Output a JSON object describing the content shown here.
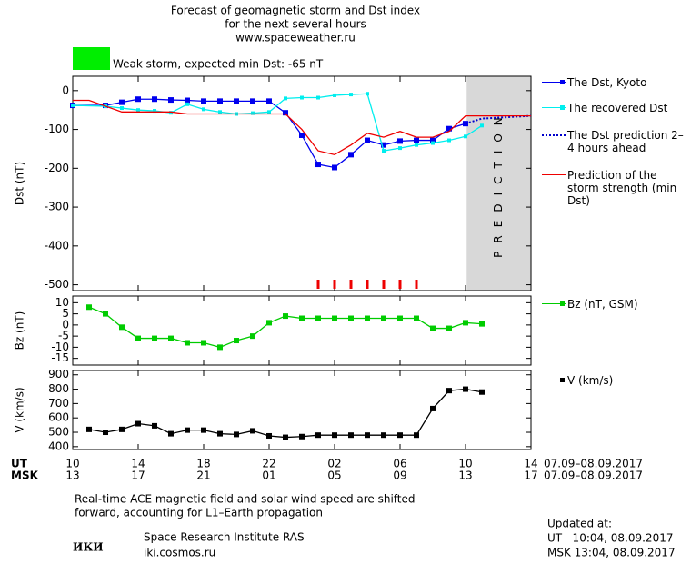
{
  "title_lines": [
    "Forecast of geomagnetic storm and Dst index",
    "for the next several hours",
    "www.spaceweather.ru"
  ],
  "storm_label": "Weak storm, expected min Dst: -65 nT",
  "storm_color": "#00ee00",
  "chart_data": [
    {
      "type": "line",
      "y_label": "Dst (nT)",
      "ylim": [
        -515,
        37
      ],
      "yticks": [
        0,
        -100,
        -200,
        -300,
        -400,
        -500
      ],
      "xlim": [
        0,
        28
      ],
      "prediction_region": [
        24.07,
        28
      ],
      "prediction_label": "PREDICTION",
      "storm_hours": [
        15,
        16,
        17,
        18,
        19,
        20,
        21
      ],
      "storm_hours_color": "#ee0000",
      "series": [
        {
          "name": "The Dst, Kyoto",
          "color": "#0000ee",
          "marker": "square",
          "x": [
            0,
            2,
            3,
            4,
            5,
            6,
            7,
            8,
            9,
            10,
            11,
            12,
            13,
            14,
            15,
            16,
            17,
            18,
            19,
            20,
            21,
            22,
            23,
            24
          ],
          "values": [
            -38,
            -38,
            -30,
            -22,
            -22,
            -24,
            -25,
            -27,
            -27,
            -27,
            -27,
            -27,
            -57,
            -115,
            -190,
            -198,
            -165,
            -128,
            -140,
            -130,
            -128,
            -128,
            -98,
            -85
          ]
        },
        {
          "name": "The recovered Dst",
          "color": "#00eeee",
          "marker": "small-square",
          "x": [
            0,
            2,
            3,
            4,
            5,
            6,
            7,
            8,
            9,
            10,
            11,
            12,
            13,
            14,
            15,
            16,
            17,
            18,
            19,
            20,
            21,
            22,
            23,
            24,
            25
          ],
          "values": [
            -38,
            -40,
            -45,
            -50,
            -52,
            -57,
            -35,
            -48,
            -55,
            -60,
            -58,
            -55,
            -20,
            -18,
            -18,
            -12,
            -10,
            -8,
            -155,
            -148,
            -140,
            -135,
            -128,
            -118,
            -90
          ]
        },
        {
          "name": "The Dst prediction 2–4 hours ahead",
          "color": "#0000cc",
          "dash": true,
          "x": [
            24,
            25,
            28
          ],
          "values": [
            -85,
            -72,
            -65
          ]
        },
        {
          "name": "Prediction of the storm strength (min Dst)",
          "color": "#ee0000",
          "x": [
            0,
            1,
            3,
            6,
            7,
            13,
            14,
            15,
            16,
            17,
            18,
            19,
            20,
            21,
            22,
            23,
            24,
            28
          ],
          "values": [
            -25,
            -25,
            -55,
            -55,
            -60,
            -60,
            -100,
            -155,
            -165,
            -140,
            -110,
            -120,
            -105,
            -120,
            -120,
            -105,
            -65,
            -65
          ]
        }
      ]
    },
    {
      "type": "line",
      "y_label": "Bz (nT)",
      "ylim": [
        -18,
        13
      ],
      "yticks": [
        10,
        5,
        0,
        -5,
        -10,
        -15
      ],
      "xlim": [
        0,
        28
      ],
      "series": [
        {
          "name": "Bz (nT, GSM)",
          "color": "#00cc00",
          "marker": "square",
          "x": [
            1,
            2,
            3,
            4,
            5,
            6,
            7,
            8,
            9,
            10,
            11,
            12,
            13,
            14,
            15,
            16,
            17,
            18,
            19,
            20,
            21,
            22,
            23,
            24,
            25
          ],
          "values": [
            8,
            5,
            -1,
            -6,
            -6,
            -6,
            -8,
            -8,
            -10,
            -7,
            -5,
            1,
            4,
            3,
            3,
            3,
            3,
            3,
            3,
            3,
            3,
            -1.5,
            -1.5,
            1,
            0.5
          ]
        }
      ]
    },
    {
      "type": "line",
      "y_label": "V (km/s)",
      "ylim": [
        380,
        930
      ],
      "yticks": [
        400,
        500,
        600,
        700,
        800,
        900
      ],
      "xlim": [
        0,
        28
      ],
      "x_label_ut": "UT",
      "x_label_msk": "MSK",
      "date_range": "07.09–08.09.2017",
      "xticks": [
        {
          "value": 0,
          "label": "10"
        },
        {
          "value": 4,
          "label": "14"
        },
        {
          "value": 8,
          "label": "18"
        },
        {
          "value": 12,
          "label": "22"
        },
        {
          "value": 16,
          "label": "02"
        },
        {
          "value": 20,
          "label": "06"
        },
        {
          "value": 24,
          "label": "10"
        },
        {
          "value": 28,
          "label": "14"
        }
      ],
      "xticks_msk": [
        {
          "value": 0,
          "label": "13"
        },
        {
          "value": 4,
          "label": "17"
        },
        {
          "value": 8,
          "label": "21"
        },
        {
          "value": 12,
          "label": "01"
        },
        {
          "value": 16,
          "label": "05"
        },
        {
          "value": 20,
          "label": "09"
        },
        {
          "value": 24,
          "label": "13"
        },
        {
          "value": 28,
          "label": "17"
        }
      ],
      "series": [
        {
          "name": "V (km/s)",
          "color": "#000000",
          "marker": "square",
          "x": [
            1,
            2,
            3,
            4,
            5,
            6,
            7,
            8,
            9,
            10,
            11,
            12,
            13,
            14,
            15,
            16,
            17,
            18,
            19,
            20,
            21,
            22,
            23,
            24,
            25
          ],
          "values": [
            520,
            500,
            520,
            560,
            545,
            490,
            515,
            515,
            490,
            485,
            510,
            475,
            465,
            470,
            480,
            480,
            480,
            480,
            480,
            480,
            480,
            665,
            790,
            800,
            780
          ]
        }
      ]
    }
  ],
  "note_lines": [
    "Real-time ACE magnetic field and solar wind speed are shifted",
    "forward, accounting for L1–Earth propagation"
  ],
  "logo": "ИКИ",
  "institute": "Space Research Institute RAS",
  "site": "iki.cosmos.ru",
  "updated": [
    "Updated at:",
    "UT   10:04, 08.09.2017",
    "MSK 13:04, 08.09.2017"
  ]
}
